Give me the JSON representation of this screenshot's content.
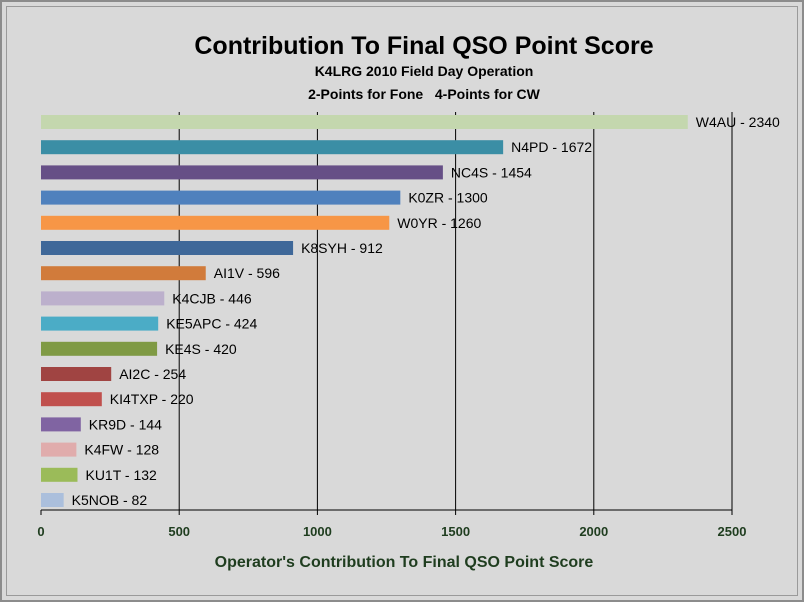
{
  "chart_data": {
    "type": "bar",
    "orientation": "horizontal",
    "title": "Contribution To Final QSO Point Score",
    "subtitle1": "K4LRG 2010 Field Day Operation",
    "subtitle2": "2-Points for Fone   4-Points for CW",
    "xlabel": "Operator's Contribution To Final QSO Point Score",
    "ylabel": "",
    "xlim": [
      0,
      2500
    ],
    "xticks": [
      0,
      500,
      1000,
      1500,
      2000,
      2500
    ],
    "grid": "vertical",
    "legend": "none",
    "bars": [
      {
        "name": "W4AU",
        "value": 2340,
        "label": "W4AU - 2340",
        "color": "#c4d7ae"
      },
      {
        "name": "N4PD",
        "value": 1672,
        "label": "N4PD - 1672",
        "color": "#3b8ea5"
      },
      {
        "name": "NC4S",
        "value": 1454,
        "label": "NC4S - 1454",
        "color": "#664f86"
      },
      {
        "name": "K0ZR",
        "value": 1300,
        "label": "K0ZR - 1300",
        "color": "#4f81bd"
      },
      {
        "name": "W0YR",
        "value": 1260,
        "label": "W0YR - 1260",
        "color": "#f79646"
      },
      {
        "name": "K8SYH",
        "value": 912,
        "label": "K8SYH - 912",
        "color": "#3f6899"
      },
      {
        "name": "AI1V",
        "value": 596,
        "label": "AI1V - 596",
        "color": "#d17b3b"
      },
      {
        "name": "K4CJB",
        "value": 446,
        "label": "K4CJB - 446",
        "color": "#bcb0cc"
      },
      {
        "name": "KE5APC",
        "value": 424,
        "label": "KE5APC - 424",
        "color": "#4bacc6"
      },
      {
        "name": "KE4S",
        "value": 420,
        "label": "KE4S - 420",
        "color": "#7f9a44"
      },
      {
        "name": "AI2C",
        "value": 254,
        "label": "AI2C - 254",
        "color": "#a04442"
      },
      {
        "name": "KI4TXP",
        "value": 220,
        "label": "KI4TXP - 220",
        "color": "#c0504d"
      },
      {
        "name": "KR9D",
        "value": 144,
        "label": "KR9D - 144",
        "color": "#8064a2"
      },
      {
        "name": "K4FW",
        "value": 128,
        "label": "K4FW - 128",
        "color": "#e0acac"
      },
      {
        "name": "KU1T",
        "value": 132,
        "label": "KU1T - 132",
        "color": "#9bbb59"
      },
      {
        "name": "K5NOB",
        "value": 82,
        "label": "K5NOB - 82",
        "color": "#abbfdc"
      }
    ]
  }
}
